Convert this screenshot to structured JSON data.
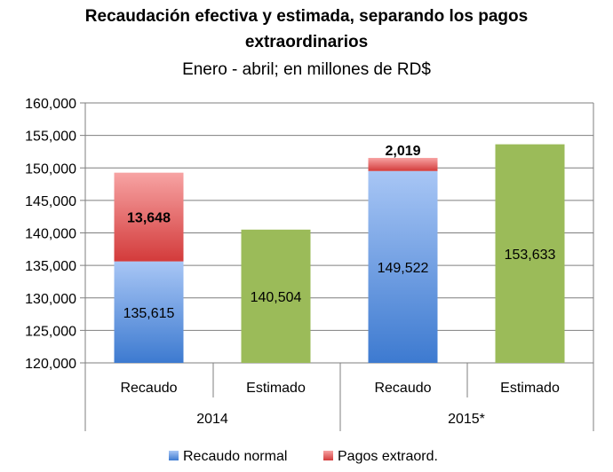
{
  "chart_data": {
    "type": "bar",
    "stacked": true,
    "title_line1": "Recaudación efectiva y estimada, separando los pagos",
    "title_line2": "extraordinarios",
    "subtitle": "Enero - abril; en millones de RD$",
    "ylim": [
      120000,
      160000
    ],
    "yticks": [
      120000,
      125000,
      130000,
      135000,
      140000,
      145000,
      150000,
      155000,
      160000
    ],
    "ytick_labels": [
      "120,000",
      "125,000",
      "130,000",
      "135,000",
      "140,000",
      "145,000",
      "150,000",
      "155,000",
      "160,000"
    ],
    "grid": true,
    "groups": [
      {
        "label": "2014",
        "categories": [
          "Recaudo",
          "Estimado"
        ]
      },
      {
        "label": "2015*",
        "categories": [
          "Recaudo",
          "Estimado"
        ]
      }
    ],
    "bars": [
      {
        "category": "Recaudo",
        "group": "2014",
        "kind": "stack",
        "normal": 135615,
        "normal_label": "135,615",
        "extra": 13648,
        "extra_label": "13,648"
      },
      {
        "category": "Estimado",
        "group": "2014",
        "kind": "single",
        "value": 140504,
        "value_label": "140,504"
      },
      {
        "category": "Recaudo",
        "group": "2015*",
        "kind": "stack",
        "normal": 149522,
        "normal_label": "149,522",
        "extra": 2019,
        "extra_label": "2,019"
      },
      {
        "category": "Estimado",
        "group": "2015*",
        "kind": "single",
        "value": 153633,
        "value_label": "153,633"
      }
    ],
    "legend": {
      "placement": "bottom",
      "items": [
        {
          "name": "Recaudo normal",
          "color": "#5b8fd9"
        },
        {
          "name": "Pagos extraord.",
          "color": "#e06060"
        }
      ]
    },
    "colors": {
      "normal_top": "#a8c6f5",
      "normal_bottom": "#3d7ad0",
      "extra_top": "#f7a3a3",
      "extra_bottom": "#d33b3b",
      "estimate": "#9bbb59",
      "grid": "#7f7f7f"
    }
  }
}
